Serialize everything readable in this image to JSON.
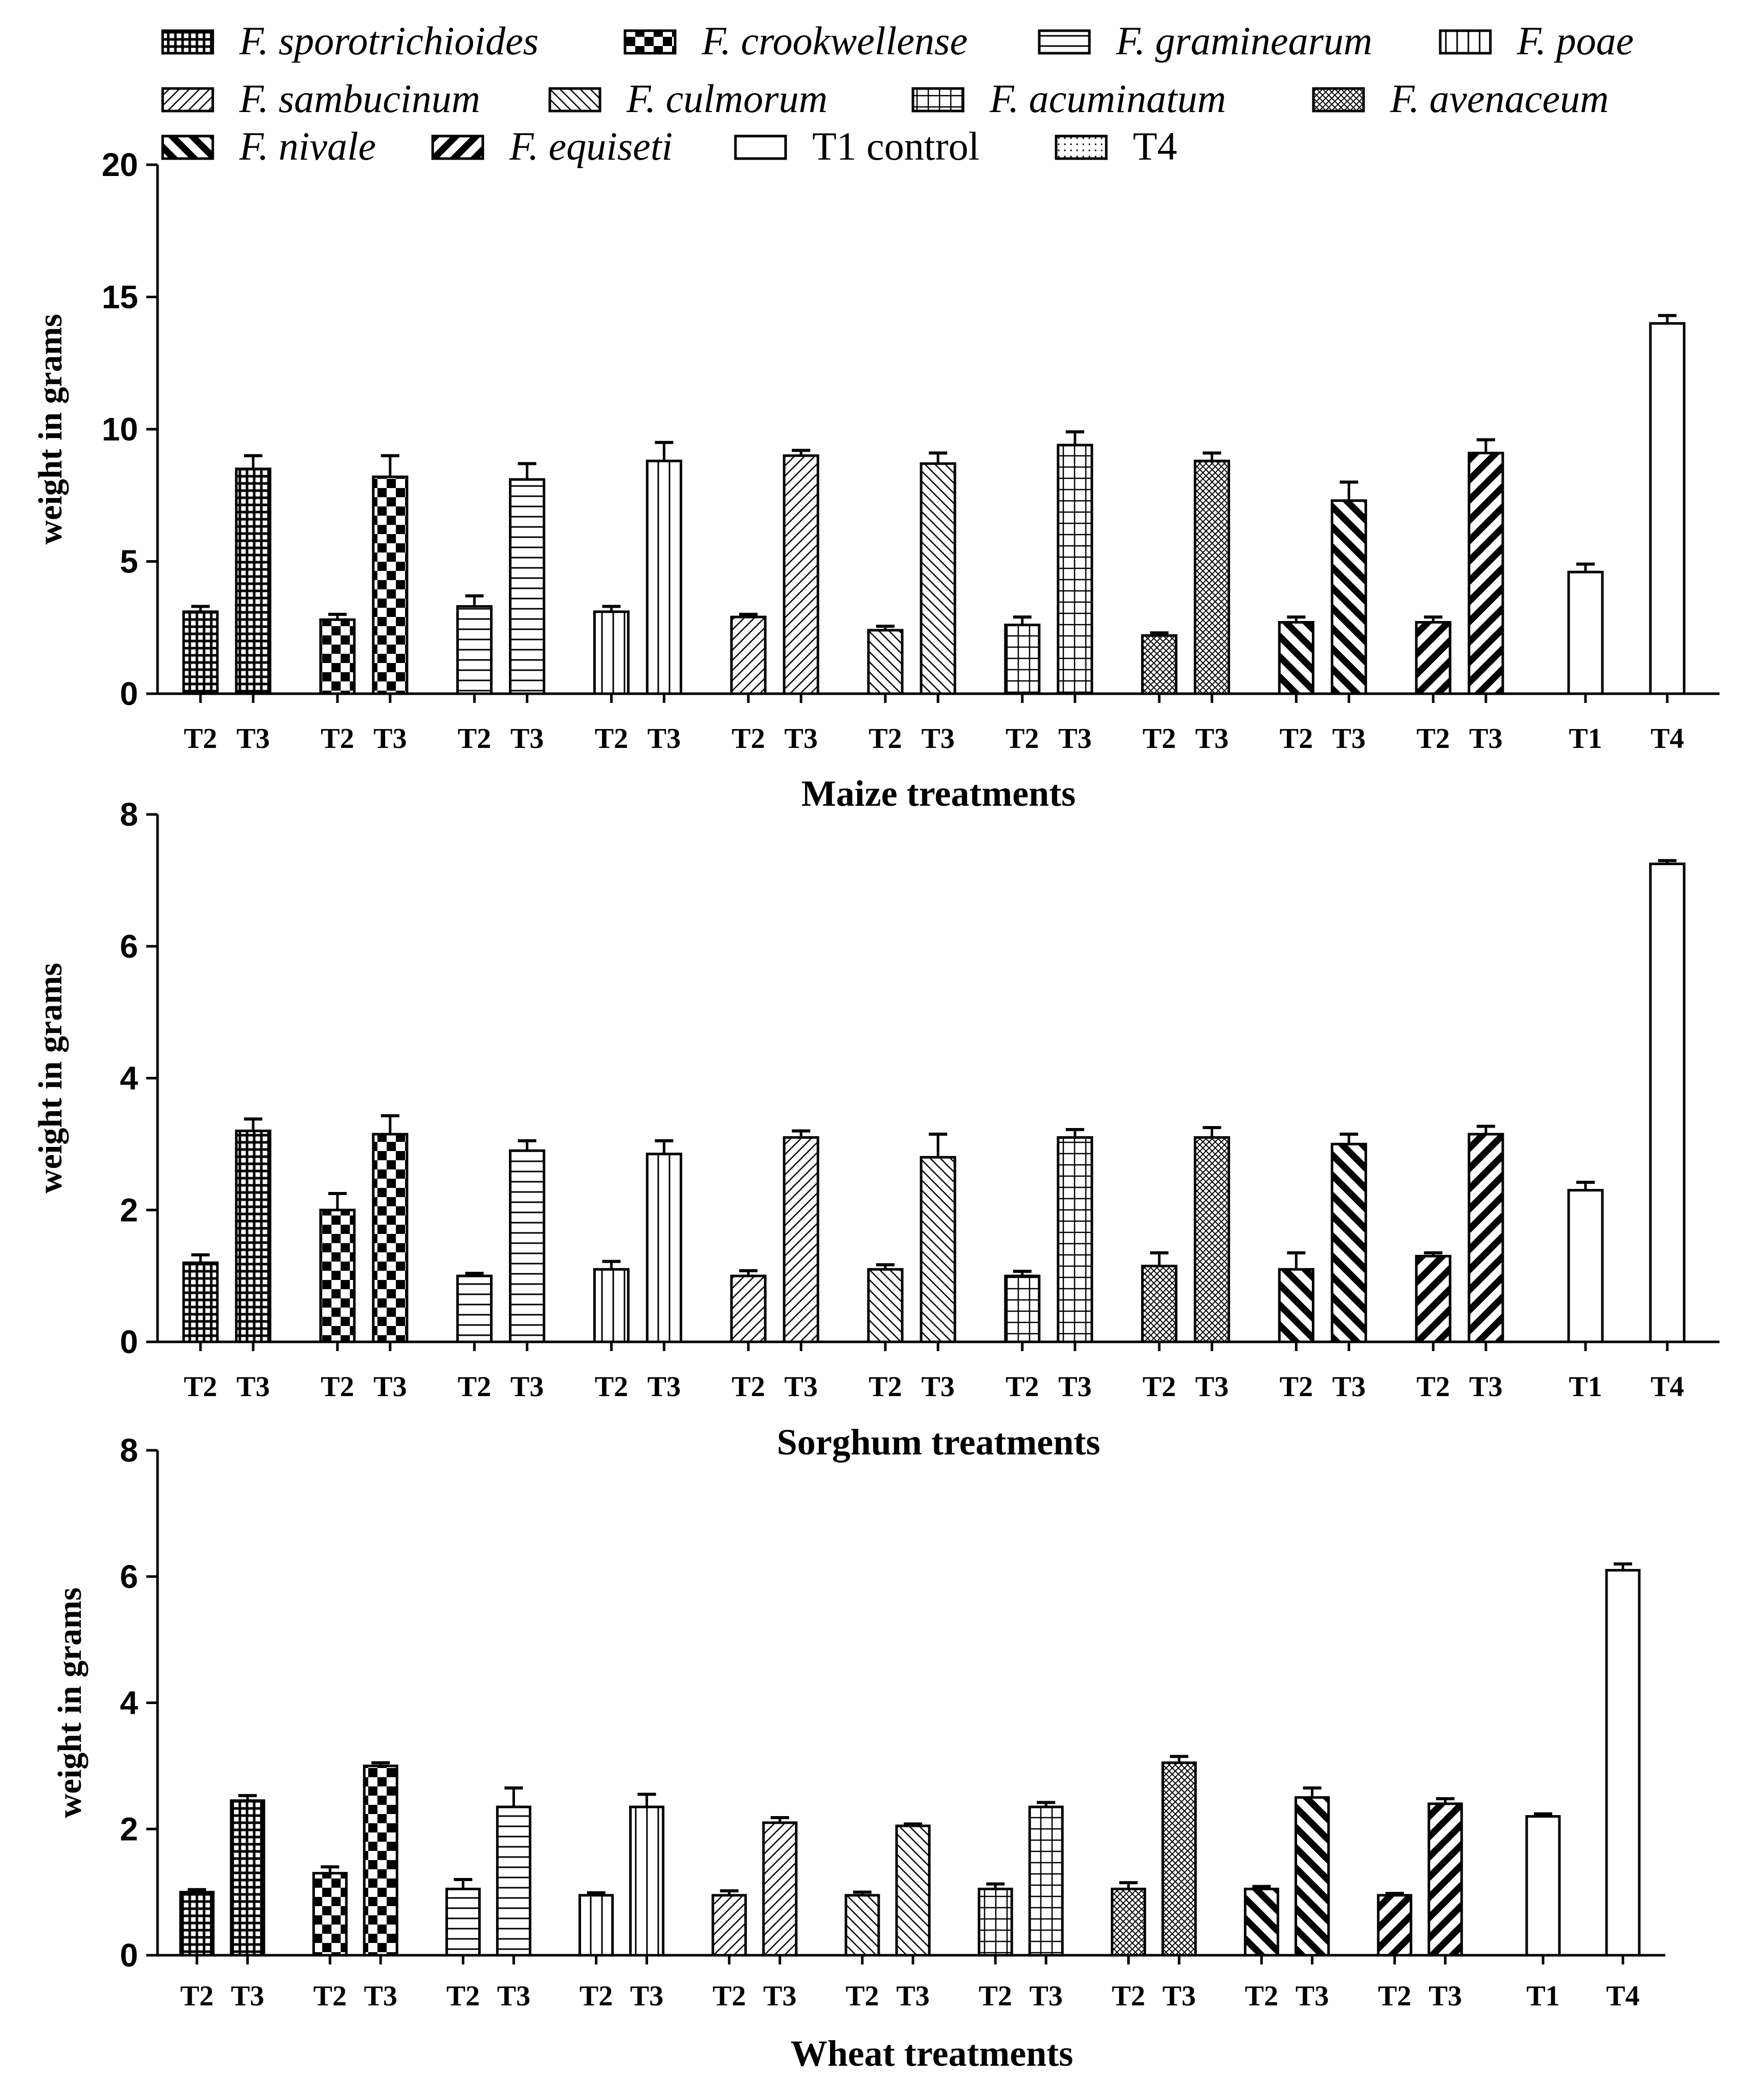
{
  "legend": {
    "items": [
      {
        "label": "F. sporotrichioides",
        "pattern": "dense-grid",
        "italic": true
      },
      {
        "label": "F. crookwellense",
        "pattern": "checker",
        "italic": true
      },
      {
        "label": "F. graminearum",
        "pattern": "hlines",
        "italic": true
      },
      {
        "label": "F. poae",
        "pattern": "vlines",
        "italic": true
      },
      {
        "label": "F. sambucinum",
        "pattern": "diag-right-fine",
        "italic": true
      },
      {
        "label": "F. culmorum",
        "pattern": "diag-left-fine",
        "italic": true
      },
      {
        "label": "F. acuminatum",
        "pattern": "grid",
        "italic": true
      },
      {
        "label": "F. avenaceum",
        "pattern": "diag-cross",
        "italic": true
      },
      {
        "label": "F. nivale",
        "pattern": "diag-left-thick",
        "italic": true
      },
      {
        "label": "F. equiseti",
        "pattern": "diag-right-thick",
        "italic": true
      },
      {
        "label": "T1 control",
        "pattern": "none",
        "italic": false
      },
      {
        "label": "T4",
        "pattern": "dots",
        "italic": false
      }
    ]
  },
  "chart_data": [
    {
      "type": "bar",
      "title": "",
      "xlabel": "Maize treatments",
      "ylabel": "weight in grams",
      "ylim": [
        0,
        20
      ],
      "yticks": [
        0,
        5,
        10,
        15,
        20
      ],
      "groups": [
        "F. sporotrichioides",
        "F. crookwellense",
        "F. graminearum",
        "F. poae",
        "F. sambucinum",
        "F. culmorum",
        "F. acuminatum",
        "F. avenaceum",
        "F. nivale",
        "F. equiseti",
        "T1 control",
        "T4"
      ],
      "tick_labels": [
        "T2",
        "T3",
        "T2",
        "T3",
        "T2",
        "T3",
        "T2",
        "T3",
        "T2",
        "T3",
        "T2",
        "T3",
        "T2",
        "T3",
        "T2",
        "T3",
        "T2",
        "T3",
        "T2",
        "T3",
        "T1",
        "T4"
      ],
      "values": [
        3.1,
        8.5,
        2.8,
        8.2,
        3.3,
        8.1,
        3.1,
        8.8,
        2.9,
        9.0,
        2.4,
        8.7,
        2.6,
        9.4,
        2.2,
        8.8,
        2.7,
        7.3,
        2.7,
        9.1,
        4.6,
        14.0
      ],
      "errors": [
        0.2,
        0.5,
        0.2,
        0.8,
        0.4,
        0.6,
        0.2,
        0.7,
        0.1,
        0.2,
        0.15,
        0.4,
        0.3,
        0.5,
        0.1,
        0.3,
        0.2,
        0.7,
        0.2,
        0.5,
        0.3,
        0.3
      ]
    },
    {
      "type": "bar",
      "title": "",
      "xlabel": "Sorghum treatments",
      "ylabel": "weight in grams",
      "ylim": [
        0,
        8
      ],
      "yticks": [
        0,
        2,
        4,
        6,
        8
      ],
      "groups": [
        "F. sporotrichioides",
        "F. crookwellense",
        "F. graminearum",
        "F. poae",
        "F. sambucinum",
        "F. culmorum",
        "F. acuminatum",
        "F. avenaceum",
        "F. nivale",
        "F. equiseti",
        "T1 control",
        "T4"
      ],
      "tick_labels": [
        "T2",
        "T3",
        "T2",
        "T3",
        "T2",
        "T3",
        "T2",
        "T3",
        "T2",
        "T3",
        "T2",
        "T3",
        "T2",
        "T3",
        "T2",
        "T3",
        "T2",
        "T3",
        "T2",
        "T3",
        "T1",
        "T4"
      ],
      "values": [
        1.2,
        3.2,
        2.0,
        3.15,
        1.0,
        2.9,
        1.1,
        2.85,
        1.0,
        3.1,
        1.1,
        2.8,
        1.0,
        3.1,
        1.15,
        3.1,
        1.1,
        3.0,
        1.3,
        3.15,
        2.3,
        7.25
      ],
      "errors": [
        0.12,
        0.18,
        0.25,
        0.28,
        0.04,
        0.15,
        0.12,
        0.2,
        0.08,
        0.1,
        0.07,
        0.35,
        0.07,
        0.12,
        0.2,
        0.15,
        0.25,
        0.15,
        0.05,
        0.12,
        0.12,
        0.05
      ]
    },
    {
      "type": "bar",
      "title": "",
      "xlabel": "Wheat treatments",
      "ylabel": "weight in grams",
      "ylim": [
        0,
        8
      ],
      "yticks": [
        0,
        2,
        4,
        6,
        8
      ],
      "groups": [
        "F. sporotrichioides",
        "F. crookwellense",
        "F. graminearum",
        "F. poae",
        "F. sambucinum",
        "F. culmorum",
        "F. acuminatum",
        "F. avenaceum",
        "F. nivale",
        "F. equiseti",
        "T1 control",
        "T4"
      ],
      "tick_labels": [
        "T2",
        "T3",
        "T2",
        "T3",
        "T2",
        "T3",
        "T2",
        "T3",
        "T2",
        "T3",
        "T2",
        "T3",
        "T2",
        "T3",
        "T2",
        "T3",
        "T2",
        "T3",
        "T2",
        "T3",
        "T1",
        "T4"
      ],
      "values": [
        1.0,
        2.45,
        1.3,
        3.0,
        1.05,
        2.35,
        0.95,
        2.35,
        0.95,
        2.1,
        0.95,
        2.05,
        1.05,
        2.35,
        1.05,
        3.05,
        1.05,
        2.5,
        0.95,
        2.4,
        2.2,
        6.1
      ],
      "errors": [
        0.04,
        0.08,
        0.1,
        0.05,
        0.15,
        0.3,
        0.04,
        0.2,
        0.07,
        0.08,
        0.05,
        0.03,
        0.08,
        0.07,
        0.1,
        0.1,
        0.04,
        0.15,
        0.03,
        0.08,
        0.04,
        0.1
      ]
    }
  ]
}
